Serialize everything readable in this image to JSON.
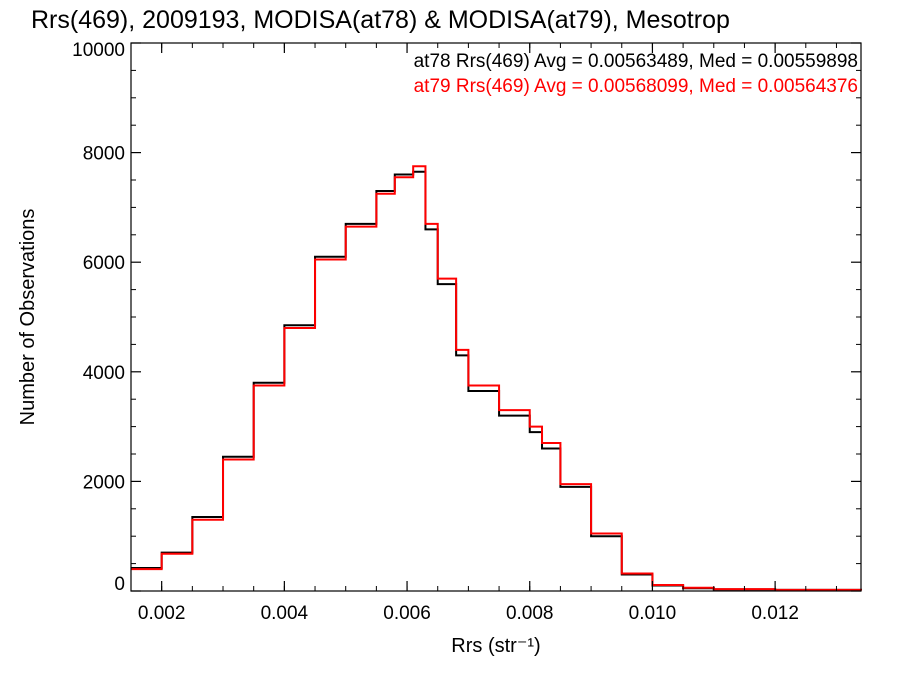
{
  "chart_data": {
    "type": "line",
    "title": "Rrs(469), 2009193, MODISA(at78) & MODISA(at79), Mesotrop",
    "xlabel": "Rrs (str⁻¹)",
    "ylabel": "Number of Observations",
    "xlim": [
      0.0015,
      0.0134
    ],
    "ylim": [
      0,
      10000
    ],
    "xticks": [
      "0.002",
      "0.004",
      "0.006",
      "0.008",
      "0.010",
      "0.012"
    ],
    "yticks": [
      "0",
      "2000",
      "4000",
      "6000",
      "8000",
      "10000"
    ],
    "legend_placement": "top-right",
    "series": [
      {
        "legend": "at78 Rrs(469) Avg = 0.00563489, Med = 0.00559898",
        "color": "#000000",
        "x": [
          0.0015,
          0.002,
          0.0025,
          0.003,
          0.0035,
          0.004,
          0.0045,
          0.005,
          0.0055,
          0.0058,
          0.0061,
          0.0063,
          0.0065,
          0.0068,
          0.007,
          0.0075,
          0.008,
          0.0082,
          0.0085,
          0.009,
          0.0095,
          0.01,
          0.0105,
          0.011,
          0.012,
          0.0134
        ],
        "y": [
          420,
          700,
          1350,
          2450,
          3800,
          4850,
          6100,
          6700,
          7300,
          7600,
          7650,
          6600,
          5600,
          4300,
          3650,
          3200,
          2900,
          2600,
          1900,
          1000,
          300,
          100,
          50,
          30,
          20,
          10
        ]
      },
      {
        "legend": "at79 Rrs(469) Avg = 0.00568099, Med = 0.00564376",
        "color": "#ff0000",
        "x": [
          0.0015,
          0.002,
          0.0025,
          0.003,
          0.0035,
          0.004,
          0.0045,
          0.005,
          0.0055,
          0.0058,
          0.0061,
          0.0063,
          0.0065,
          0.0068,
          0.007,
          0.0075,
          0.008,
          0.0082,
          0.0085,
          0.009,
          0.0095,
          0.01,
          0.0105,
          0.011,
          0.012,
          0.0134
        ],
        "y": [
          400,
          680,
          1300,
          2400,
          3750,
          4800,
          6050,
          6650,
          7250,
          7550,
          7750,
          6700,
          5700,
          4400,
          3750,
          3300,
          3000,
          2700,
          1950,
          1050,
          320,
          110,
          60,
          35,
          20,
          10
        ]
      }
    ]
  }
}
